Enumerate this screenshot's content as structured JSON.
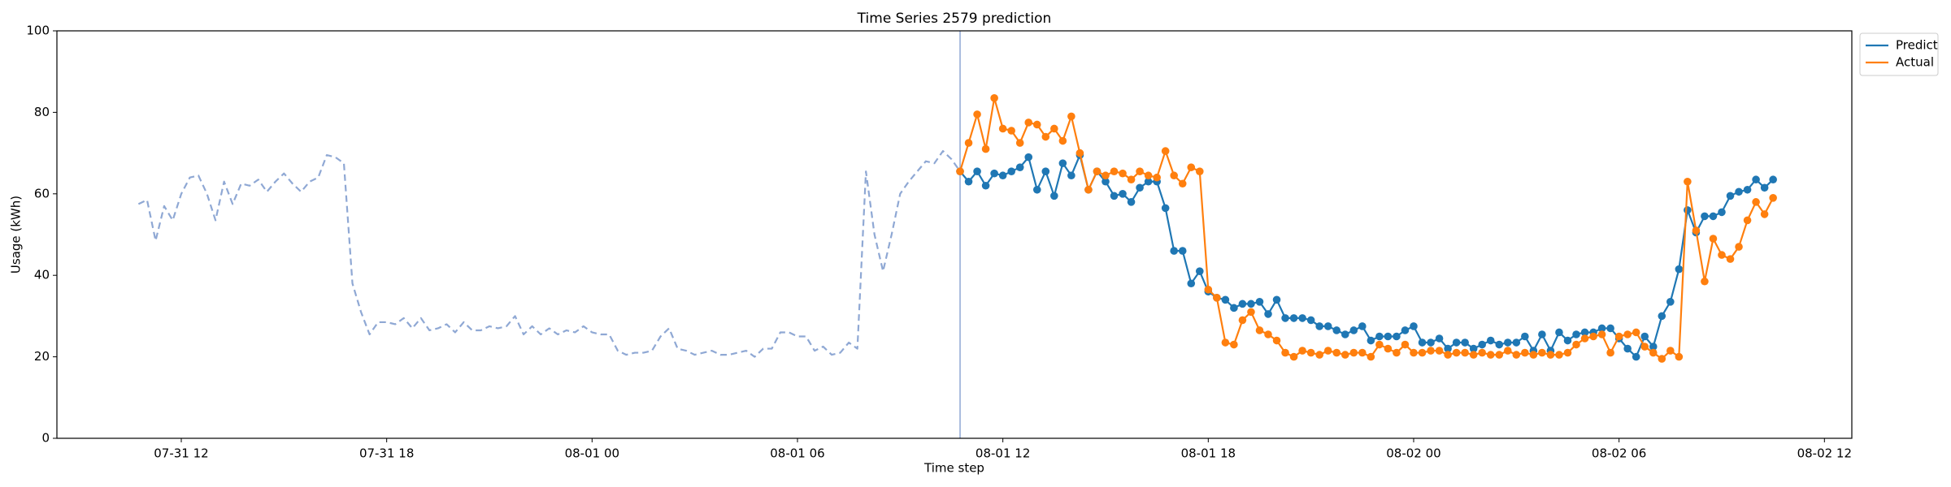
{
  "chart_data": {
    "type": "line",
    "title": "Time Series 2579 prediction",
    "xlabel": "Time step",
    "ylabel": "Usage (kWh)",
    "xlim": [
      "07-31 08:22",
      "08-02 12:48"
    ],
    "ylim": [
      0,
      100
    ],
    "yticks": [
      0,
      20,
      40,
      60,
      80,
      100
    ],
    "xticks": [
      {
        "value": "07-31 12:00",
        "label": "07-31 12"
      },
      {
        "value": "07-31 18:00",
        "label": "07-31 18"
      },
      {
        "value": "08-01 00:00",
        "label": "08-01 00"
      },
      {
        "value": "08-01 06:00",
        "label": "08-01 06"
      },
      {
        "value": "08-01 12:00",
        "label": "08-01 12"
      },
      {
        "value": "08-01 18:00",
        "label": "08-01 18"
      },
      {
        "value": "08-02 00:00",
        "label": "08-02 00"
      },
      {
        "value": "08-02 06:00",
        "label": "08-02 06"
      },
      {
        "value": "08-02 12:00",
        "label": "08-02 12"
      }
    ],
    "forecast_start": "08-01 10:45",
    "forecast_line_color": "#8fa8d4",
    "legend": "upper right outside",
    "x": [
      "08-01 10:45",
      "08-01 11:00",
      "08-01 11:15",
      "08-01 11:30",
      "08-01 11:45",
      "08-01 12:00",
      "08-01 12:15",
      "08-01 12:30",
      "08-01 12:45",
      "08-01 13:00",
      "08-01 13:15",
      "08-01 13:30",
      "08-01 13:45",
      "08-01 14:00",
      "08-01 14:15",
      "08-01 14:30",
      "08-01 14:45",
      "08-01 15:00",
      "08-01 15:15",
      "08-01 15:30",
      "08-01 15:45",
      "08-01 16:00",
      "08-01 16:15",
      "08-01 16:30",
      "08-01 16:45",
      "08-01 17:00",
      "08-01 17:15",
      "08-01 17:30",
      "08-01 17:45",
      "08-01 18:00",
      "08-01 18:15",
      "08-01 18:30",
      "08-01 18:45",
      "08-01 19:00",
      "08-01 19:15",
      "08-01 19:30",
      "08-01 19:45",
      "08-01 20:00",
      "08-01 20:15",
      "08-01 20:30",
      "08-01 20:45",
      "08-01 21:00",
      "08-01 21:15",
      "08-01 21:30",
      "08-01 21:45",
      "08-01 22:00",
      "08-01 22:15",
      "08-01 22:30",
      "08-01 22:45",
      "08-01 23:00",
      "08-01 23:15",
      "08-01 23:30",
      "08-01 23:45",
      "08-02 00:00",
      "08-02 00:15",
      "08-02 00:30",
      "08-02 00:45",
      "08-02 01:00",
      "08-02 01:15",
      "08-02 01:30",
      "08-02 01:45",
      "08-02 02:00",
      "08-02 02:15",
      "08-02 02:30",
      "08-02 02:45",
      "08-02 03:00",
      "08-02 03:15",
      "08-02 03:30",
      "08-02 03:45",
      "08-02 04:00",
      "08-02 04:15",
      "08-02 04:30",
      "08-02 04:45",
      "08-02 05:00",
      "08-02 05:15",
      "08-02 05:30",
      "08-02 05:45",
      "08-02 06:00",
      "08-02 06:15",
      "08-02 06:30",
      "08-02 06:45",
      "08-02 07:00",
      "08-02 07:15",
      "08-02 07:30",
      "08-02 07:45",
      "08-02 08:00",
      "08-02 08:15",
      "08-02 08:30",
      "08-02 08:45",
      "08-02 09:00",
      "08-02 09:15",
      "08-02 09:30",
      "08-02 09:45",
      "08-02 10:00",
      "08-02 10:15",
      "08-02 10:30"
    ],
    "series": [
      {
        "color": "#8fa8d4",
        "dashed": true,
        "markers": false,
        "x": [
          "07-31 10:45",
          "07-31 11:00",
          "07-31 11:15",
          "07-31 11:30",
          "07-31 11:45",
          "07-31 12:00",
          "07-31 12:15",
          "07-31 12:30",
          "07-31 12:45",
          "07-31 13:00",
          "07-31 13:15",
          "07-31 13:30",
          "07-31 13:45",
          "07-31 14:00",
          "07-31 14:15",
          "07-31 14:30",
          "07-31 14:45",
          "07-31 15:00",
          "07-31 15:15",
          "07-31 15:30",
          "07-31 15:45",
          "07-31 16:00",
          "07-31 16:15",
          "07-31 16:30",
          "07-31 16:45",
          "07-31 17:00",
          "07-31 17:15",
          "07-31 17:30",
          "07-31 17:45",
          "07-31 18:00",
          "07-31 18:15",
          "07-31 18:30",
          "07-31 18:45",
          "07-31 19:00",
          "07-31 19:15",
          "07-31 19:30",
          "07-31 19:45",
          "07-31 20:00",
          "07-31 20:15",
          "07-31 20:30",
          "07-31 20:45",
          "07-31 21:00",
          "07-31 21:15",
          "07-31 21:30",
          "07-31 21:45",
          "07-31 22:00",
          "07-31 22:15",
          "07-31 22:30",
          "07-31 22:45",
          "07-31 23:00",
          "07-31 23:15",
          "07-31 23:30",
          "07-31 23:45",
          "08-01 00:00",
          "08-01 00:15",
          "08-01 00:30",
          "08-01 00:45",
          "08-01 01:00",
          "08-01 01:15",
          "08-01 01:30",
          "08-01 01:45",
          "08-01 02:00",
          "08-01 02:15",
          "08-01 02:30",
          "08-01 02:45",
          "08-01 03:00",
          "08-01 03:15",
          "08-01 03:30",
          "08-01 03:45",
          "08-01 04:00",
          "08-01 04:15",
          "08-01 04:30",
          "08-01 04:45",
          "08-01 05:00",
          "08-01 05:15",
          "08-01 05:30",
          "08-01 05:45",
          "08-01 06:00",
          "08-01 06:15",
          "08-01 06:30",
          "08-01 06:45",
          "08-01 07:00",
          "08-01 07:15",
          "08-01 07:30",
          "08-01 07:45",
          "08-01 08:00",
          "08-01 08:15",
          "08-01 08:30",
          "08-01 08:45",
          "08-01 09:00",
          "08-01 09:15",
          "08-01 09:30",
          "08-01 09:45",
          "08-01 10:00",
          "08-01 10:15",
          "08-01 10:30",
          "08-01 10:45"
        ],
        "values": [
          57.5,
          58.5,
          48.5,
          57,
          53.5,
          60,
          64,
          64.5,
          60,
          53.5,
          63,
          57.5,
          62.5,
          62,
          63.5,
          60.5,
          63,
          65,
          62.5,
          60.5,
          63,
          64,
          69.5,
          69,
          67.5,
          38,
          31,
          25.5,
          28.5,
          28.5,
          28,
          29.5,
          27,
          29.5,
          26.5,
          27,
          28,
          26,
          28.5,
          26.5,
          26.5,
          27.5,
          27,
          27.5,
          30,
          25.5,
          27.5,
          25.5,
          27,
          25.5,
          26.5,
          26,
          27.5,
          26,
          25.5,
          25.5,
          21.5,
          20.5,
          21,
          21,
          21.5,
          25,
          27,
          22,
          21.5,
          20.5,
          21,
          21.5,
          20.5,
          20.5,
          21,
          21.5,
          20,
          22,
          22,
          26,
          26,
          25,
          25,
          21.5,
          22.5,
          20.5,
          21,
          23.5,
          22,
          65.5,
          50,
          41,
          50,
          60,
          63,
          65.5,
          68,
          67.5,
          70.5,
          68.5,
          65.5
        ]
      },
      {
        "name": "Predict",
        "color": "#1f77b4",
        "dashed": false,
        "markers": true,
        "values": [
          65.5,
          63,
          65.5,
          62,
          65,
          64.5,
          65.5,
          66.5,
          69,
          61,
          65.5,
          59.5,
          67.5,
          64.5,
          69.5,
          61,
          65.5,
          63,
          59.5,
          60,
          58,
          61.5,
          63,
          63,
          56.5,
          46,
          46,
          38,
          41,
          36,
          34.5,
          34,
          32,
          33,
          33,
          33.5,
          30.5,
          34,
          29.5,
          29.5,
          29.5,
          29,
          27.5,
          27.5,
          26.5,
          25.5,
          26.5,
          27.5,
          24,
          25,
          25,
          25,
          26.5,
          27.5,
          23.5,
          23.5,
          24.5,
          22,
          23.5,
          23.5,
          22,
          23,
          24,
          23,
          23.5,
          23.5,
          25,
          21.5,
          25.5,
          21.5,
          26,
          24,
          25.5,
          26,
          26,
          27,
          27,
          24.5,
          22,
          20,
          25,
          22.5,
          30,
          33.5,
          41.5,
          56,
          50.5,
          54.5,
          54.5,
          55.5,
          59.5,
          60.5,
          61,
          63.5,
          61.5,
          63.5
        ]
      },
      {
        "name": "Actual",
        "color": "#ff7f0e",
        "dashed": false,
        "markers": true,
        "values": [
          65.5,
          72.5,
          79.5,
          71,
          83.5,
          76,
          75.5,
          72.5,
          77.5,
          77,
          74,
          76,
          73,
          79,
          70,
          61,
          65.5,
          64.5,
          65.5,
          65,
          63.5,
          65.5,
          64.5,
          64,
          70.5,
          64.5,
          62.5,
          66.5,
          65.5,
          36.5,
          34.5,
          23.5,
          23,
          29,
          31,
          26.5,
          25.5,
          24,
          21,
          20,
          21.5,
          21,
          20.5,
          21.5,
          21,
          20.5,
          21,
          21,
          20,
          23,
          22,
          21,
          23,
          21,
          21,
          21.5,
          21.5,
          20.5,
          21,
          21,
          20.5,
          21,
          20.5,
          20.5,
          21.5,
          20.5,
          21,
          20.5,
          21,
          20.5,
          20.5,
          21,
          23,
          24.5,
          25,
          25.5,
          21,
          25,
          25.5,
          26,
          22.5,
          21,
          19.5,
          21.5,
          20,
          63,
          51,
          38.5,
          49,
          45,
          44,
          47,
          53.5,
          58,
          55,
          59
        ]
      }
    ]
  }
}
